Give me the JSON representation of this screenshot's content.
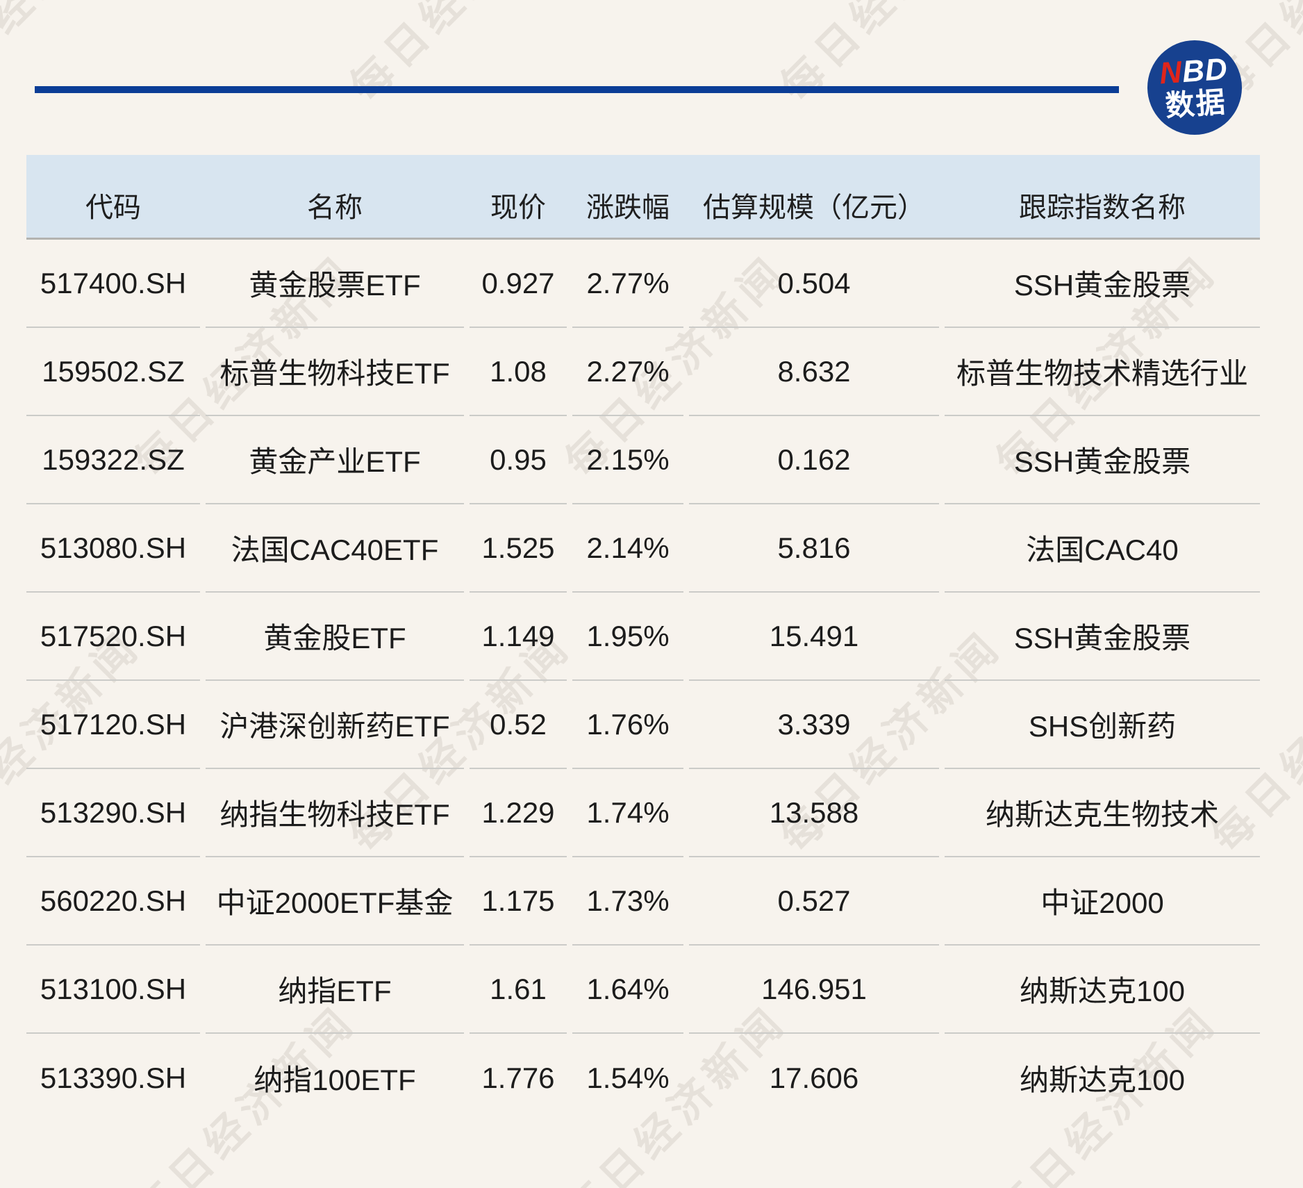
{
  "logo": {
    "nbd_n": "N",
    "nbd_bd": "BD",
    "subtitle": "数据",
    "circle_color": "#17418f",
    "n_color": "#e0251b",
    "rule_color": "#0b3d96"
  },
  "watermark": {
    "text": "每日经济新闻"
  },
  "table": {
    "headers": [
      "代码",
      "名称",
      "现价",
      "涨跌幅",
      "估算规模（亿元）",
      "跟踪指数名称"
    ],
    "rows": [
      [
        "517400.SH",
        "黄金股票ETF",
        "0.927",
        "2.77%",
        "0.504",
        "SSH黄金股票"
      ],
      [
        "159502.SZ",
        "标普生物科技ETF",
        "1.08",
        "2.27%",
        "8.632",
        "标普生物技术精选行业"
      ],
      [
        "159322.SZ",
        "黄金产业ETF",
        "0.95",
        "2.15%",
        "0.162",
        "SSH黄金股票"
      ],
      [
        "513080.SH",
        "法国CAC40ETF",
        "1.525",
        "2.14%",
        "5.816",
        "法国CAC40"
      ],
      [
        "517520.SH",
        "黄金股ETF",
        "1.149",
        "1.95%",
        "15.491",
        "SSH黄金股票"
      ],
      [
        "517120.SH",
        "沪港深创新药ETF",
        "0.52",
        "1.76%",
        "3.339",
        "SHS创新药"
      ],
      [
        "513290.SH",
        "纳指生物科技ETF",
        "1.229",
        "1.74%",
        "13.588",
        "纳斯达克生物技术"
      ],
      [
        "560220.SH",
        "中证2000ETF基金",
        "1.175",
        "1.73%",
        "0.527",
        "中证2000"
      ],
      [
        "513100.SH",
        "纳指ETF",
        "1.61",
        "1.64%",
        "146.951",
        "纳斯达克100"
      ],
      [
        "513390.SH",
        "纳指100ETF",
        "1.776",
        "1.54%",
        "17.606",
        "纳斯达克100"
      ]
    ]
  },
  "chart_data": {
    "type": "table",
    "title": "",
    "columns": [
      "代码",
      "名称",
      "现价",
      "涨跌幅",
      "估算规模（亿元）",
      "跟踪指数名称"
    ],
    "rows": [
      [
        "517400.SH",
        "黄金股票ETF",
        0.927,
        "2.77%",
        0.504,
        "SSH黄金股票"
      ],
      [
        "159502.SZ",
        "标普生物科技ETF",
        1.08,
        "2.27%",
        8.632,
        "标普生物技术精选行业"
      ],
      [
        "159322.SZ",
        "黄金产业ETF",
        0.95,
        "2.15%",
        0.162,
        "SSH黄金股票"
      ],
      [
        "513080.SH",
        "法国CAC40ETF",
        1.525,
        "2.14%",
        5.816,
        "法国CAC40"
      ],
      [
        "517520.SH",
        "黄金股ETF",
        1.149,
        "1.95%",
        15.491,
        "SSH黄金股票"
      ],
      [
        "517120.SH",
        "沪港深创新药ETF",
        0.52,
        "1.76%",
        3.339,
        "SHS创新药"
      ],
      [
        "513290.SH",
        "纳指生物科技ETF",
        1.229,
        "1.74%",
        13.588,
        "纳斯达克生物技术"
      ],
      [
        "560220.SH",
        "中证2000ETF基金",
        1.175,
        "1.73%",
        0.527,
        "中证2000"
      ],
      [
        "513100.SH",
        "纳指ETF",
        1.61,
        "1.64%",
        146.951,
        "纳斯达克100"
      ],
      [
        "513390.SH",
        "纳指100ETF",
        1.776,
        "1.54%",
        17.606,
        "纳斯达克100"
      ]
    ]
  }
}
